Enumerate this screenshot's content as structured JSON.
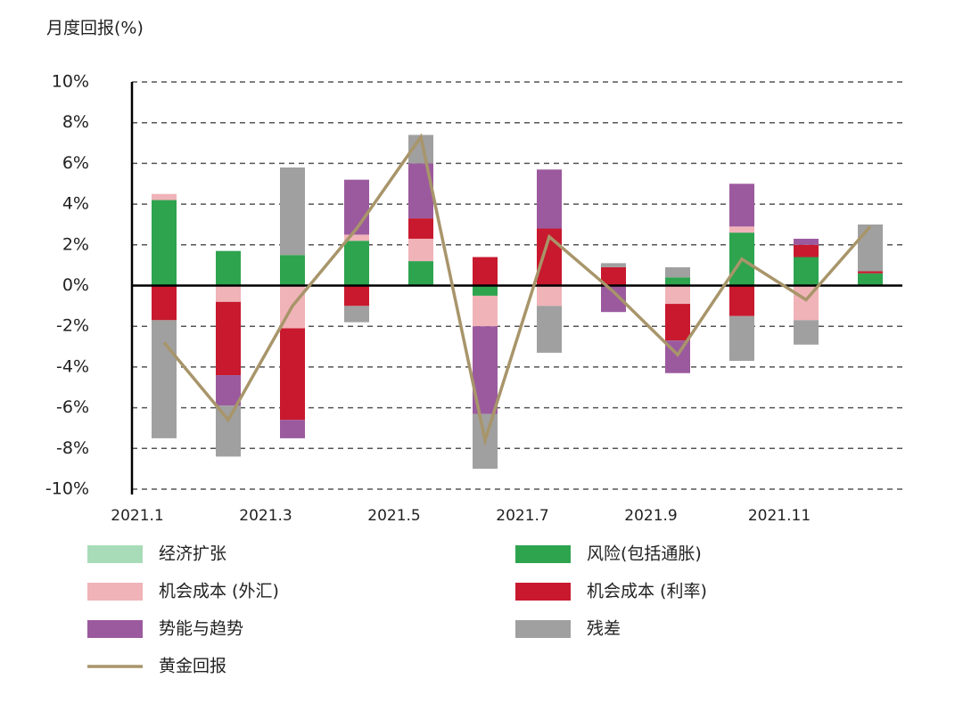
{
  "chart_data": {
    "type": "stacked-bar-line",
    "y_axis_label": "月度回报(%)",
    "categories": [
      "2021.1",
      null,
      "2021.3",
      null,
      "2021.5",
      null,
      "2021.7",
      null,
      "2021.9",
      null,
      "2021.11",
      null
    ],
    "series": [
      {
        "name": "经济扩张",
        "color": "#a8dcb8",
        "values": [
          0,
          0,
          0,
          0,
          0,
          0,
          0,
          0,
          0,
          0,
          0,
          0
        ]
      },
      {
        "name": "风险(包括通胀)",
        "color": "#2ea44f",
        "values": [
          4.2,
          1.7,
          1.5,
          2.2,
          1.2,
          -0.5,
          0,
          0,
          0.4,
          2.6,
          1.4,
          0.6
        ]
      },
      {
        "name": "机会成本 (外汇)",
        "color": "#f0b3b8",
        "values": [
          0.3,
          -0.8,
          -2.1,
          0.3,
          1.1,
          -1.5,
          -1.0,
          0,
          -0.9,
          0.3,
          -1.7,
          0
        ]
      },
      {
        "name": "机会成本 (利率)",
        "color": "#c8192e",
        "values": [
          -1.7,
          -3.6,
          -4.5,
          -1.0,
          1.0,
          1.4,
          2.8,
          0.9,
          -1.8,
          -1.5,
          0.6,
          0.1
        ]
      },
      {
        "name": "势能与趋势",
        "color": "#9b5a9e",
        "values": [
          0,
          -1.5,
          -0.9,
          2.7,
          2.7,
          -4.3,
          2.9,
          -1.3,
          -1.6,
          2.1,
          0.3,
          0
        ]
      },
      {
        "name": "残差",
        "color": "#a0a0a0",
        "values": [
          -5.8,
          -2.5,
          4.3,
          -0.8,
          1.4,
          -2.7,
          -2.3,
          0.2,
          0.5,
          -2.2,
          -1.2,
          2.3
        ]
      }
    ],
    "line_series": {
      "name": "黄金回报",
      "color": "#a8956a",
      "values": [
        -2.8,
        -6.6,
        -1.0,
        2.8,
        7.3,
        -7.6,
        2.4,
        -0.3,
        -3.4,
        1.3,
        -0.7,
        2.9
      ]
    },
    "ylim": [
      -10,
      10
    ],
    "yticks": [
      {
        "value": -10,
        "label": "-10%"
      },
      {
        "value": -8,
        "label": "-8%"
      },
      {
        "value": -6,
        "label": "-6%"
      },
      {
        "value": -4,
        "label": "-4%"
      },
      {
        "value": -2,
        "label": "-2%"
      },
      {
        "value": 0,
        "label": "0%"
      },
      {
        "value": 2,
        "label": "2%"
      },
      {
        "value": 4,
        "label": "4%"
      },
      {
        "value": 6,
        "label": "6%"
      },
      {
        "value": 8,
        "label": "8%"
      },
      {
        "value": 10,
        "label": "10%"
      }
    ],
    "grid": true
  }
}
